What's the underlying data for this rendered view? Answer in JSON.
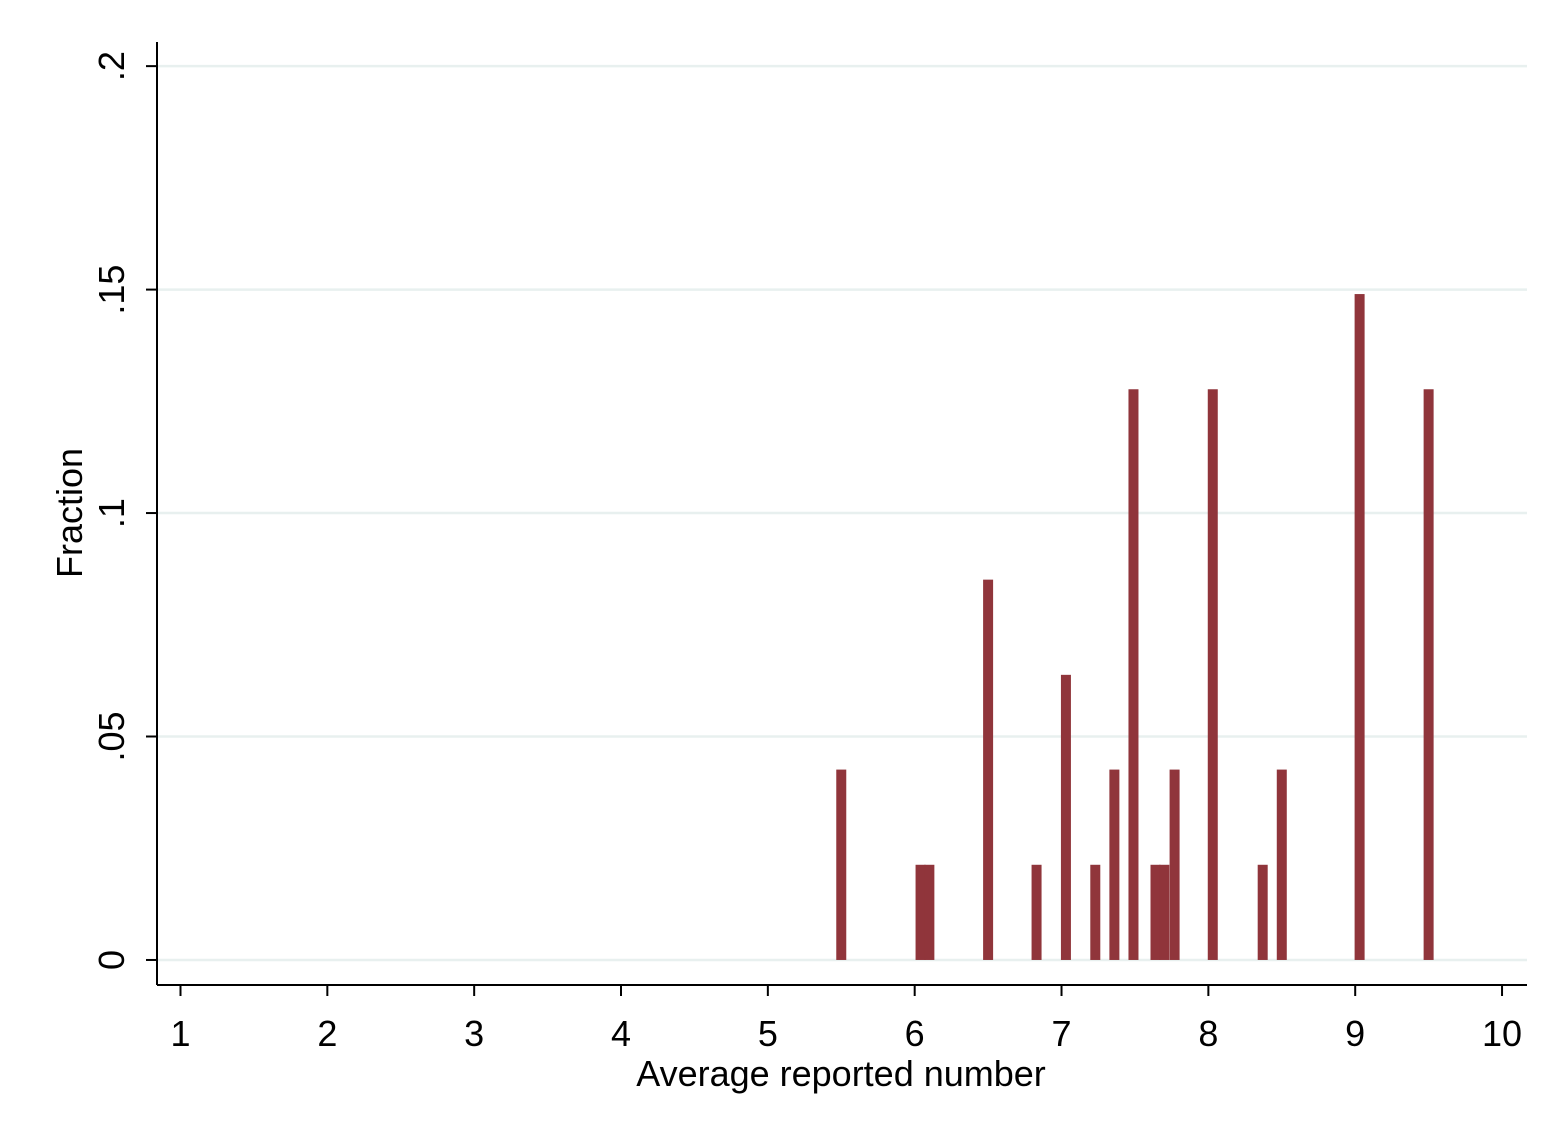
{
  "chart_data": {
    "type": "bar",
    "x_label": "Average reported number",
    "y_label": "Fraction",
    "x": [
      5.5,
      6.04,
      6.1,
      6.5,
      6.83,
      7.03,
      7.23,
      7.36,
      7.49,
      7.64,
      7.7,
      7.77,
      8.03,
      8.37,
      8.5,
      9.03,
      9.5
    ],
    "values": [
      0.0426,
      0.0213,
      0.0213,
      0.0851,
      0.0213,
      0.0638,
      0.0213,
      0.0426,
      0.1277,
      0.0213,
      0.0213,
      0.0426,
      0.1277,
      0.0213,
      0.0426,
      0.149,
      0.1277
    ],
    "color": "#90353b",
    "xlim": [
      0.84,
      10.17
    ],
    "xticks": [
      1,
      2,
      3,
      4,
      5,
      6,
      7,
      8,
      9,
      10
    ],
    "ylim": [
      -0.0056,
      0.2054
    ],
    "yticks": [
      0,
      {
        "value": 0.05,
        "label": ".05"
      },
      {
        "value": 0.1,
        "label": ".1"
      },
      {
        "value": 0.15,
        "label": ".15"
      },
      {
        "value": 0.2,
        "label": ".2"
      }
    ],
    "grid": true
  }
}
